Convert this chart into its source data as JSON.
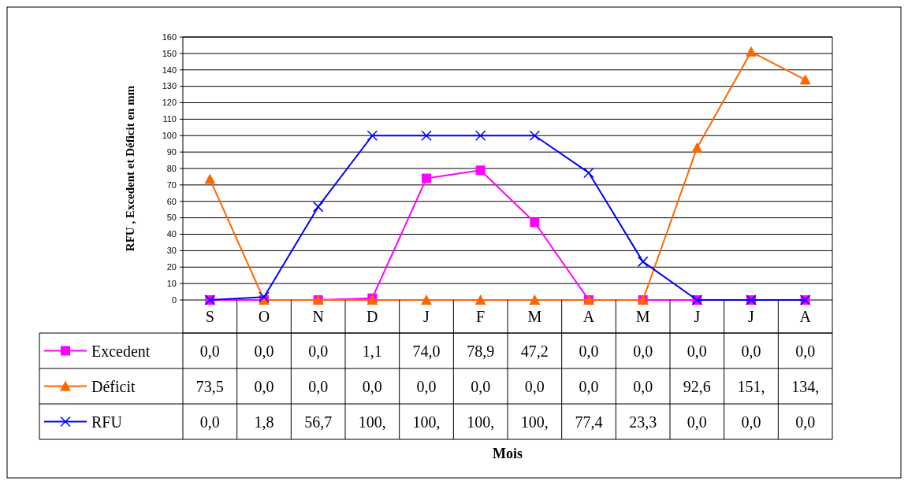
{
  "chart_data": {
    "type": "line",
    "annotations": [
      "Mois"
    ],
    "ylabel": "RFU , Excedent et Déficit en mm",
    "categories": [
      "S",
      "O",
      "N",
      "D",
      "J",
      "F",
      "M",
      "A",
      "M",
      "J",
      "J",
      "A"
    ],
    "series": [
      {
        "name": "Excedent",
        "color": "#ff00ff",
        "marker": "square",
        "values": [
          0,
          0,
          0,
          1.1,
          74,
          78.9,
          47.2,
          0,
          0,
          0,
          0,
          0
        ],
        "value_labels": [
          "0,0",
          "0,0",
          "0,0",
          "1,1",
          "74,0",
          "78,9",
          "47,2",
          "0,0",
          "0,0",
          "0,0",
          "0,0",
          "0,0"
        ]
      },
      {
        "name": "Déficit",
        "color": "#ff6600",
        "marker": "triangle",
        "values": [
          73.5,
          0,
          0,
          0,
          0,
          0,
          0,
          0,
          0,
          92.6,
          151,
          134
        ],
        "value_labels": [
          "73,5",
          "0,0",
          "0,0",
          "0,0",
          "0,0",
          "0,0",
          "0,0",
          "0,0",
          "0,0",
          "92,6",
          "151,",
          "134,"
        ]
      },
      {
        "name": "RFU",
        "color": "#0000ff",
        "marker": "cross",
        "values": [
          0,
          1.8,
          56.7,
          100,
          100,
          100,
          100,
          77.4,
          23.3,
          0,
          0,
          0
        ],
        "value_labels": [
          "0,0",
          "1,8",
          "56,7",
          "100,",
          "100,",
          "100,",
          "100,",
          "77,4",
          "23,3",
          "0,0",
          "0,0",
          "0,0"
        ]
      }
    ],
    "ylim": [
      0,
      160
    ],
    "yticks": [
      0,
      10,
      20,
      30,
      40,
      50,
      60,
      70,
      80,
      90,
      100,
      110,
      120,
      130,
      140,
      150,
      160
    ],
    "grid": "y",
    "legend": "bottom",
    "data_labels": true
  }
}
